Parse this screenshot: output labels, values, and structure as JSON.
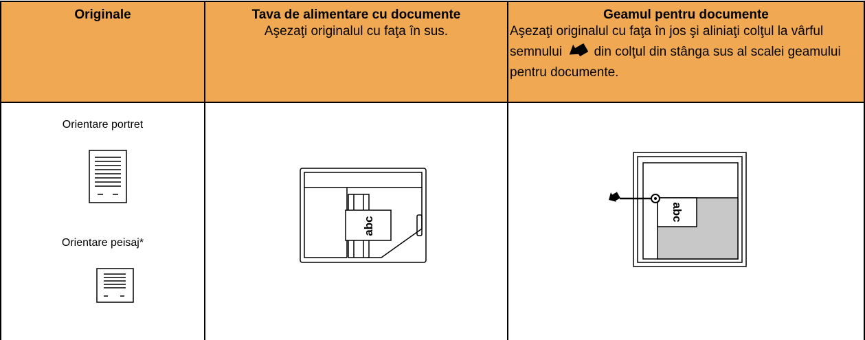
{
  "header": {
    "col1": "Originale",
    "col2": {
      "title": "Tava de alimentare cu documente",
      "text": "Aşezaţi originalul cu faţa în sus."
    },
    "col3": {
      "title": "Geamul pentru documente",
      "text_before": "Aşezaţi originalul cu faţa în jos şi aliniaţi colţul la vârful semnului",
      "text_after": "din colţul din stânga sus al scalei geamului pentru documente."
    }
  },
  "body": {
    "portrait": "Orientare portret",
    "landscape": "Orientare peisaj*",
    "feeder_label": "abc",
    "glass_label": "abc"
  }
}
